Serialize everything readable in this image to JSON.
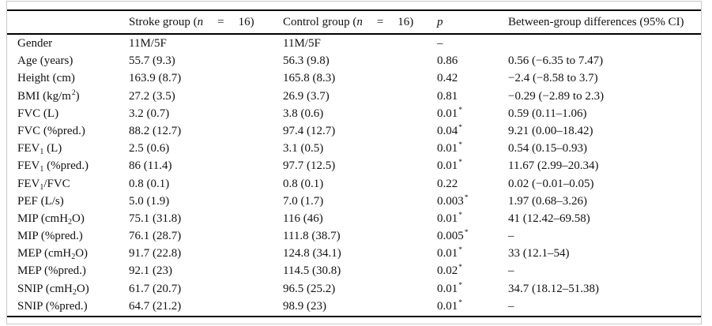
{
  "table": {
    "headers": [
      "",
      "Stroke group (*n*  =  16)",
      "Control group (*n*  =  16)",
      "*p*",
      "Between-group differences (95% CI)"
    ],
    "rows": [
      [
        "Gender",
        "11M/5F",
        "11M/5F",
        "–",
        ""
      ],
      [
        "Age (years)",
        "55.7 (9.3)",
        "56.3 (9.8)",
        "0.86",
        "0.56 (−6.35 to 7.47)"
      ],
      [
        "Height (cm)",
        "163.9 (8.7)",
        "165.8 (8.3)",
        "0.42",
        "−2.4 (−8.58 to 3.7)"
      ],
      [
        "BMI (kg/m^2^)",
        "27.2 (3.5)",
        "26.9 (3.7)",
        "0.81",
        "−0.29 (−2.89 to 2.3)"
      ],
      [
        "FVC (L)",
        "3.2 (0.7)",
        "3.8 (0.6)",
        "0.01^*^",
        "0.59 (0.11–1.06)"
      ],
      [
        "FVC (%pred.)",
        "88.2 (12.7)",
        "97.4 (12.7)",
        "0.04^*^",
        "9.21 (0.00–18.42)"
      ],
      [
        "FEV~1~ (L)",
        "2.5 (0.6)",
        "3.1 (0.5)",
        "0.01^*^",
        "0.54 (0.15–0.93)"
      ],
      [
        "FEV~1~ (%pred.)",
        "86 (11.4)",
        "97.7 (12.5)",
        "0.01^*^",
        "11.67 (2.99–20.34)"
      ],
      [
        "FEV~1~/FVC",
        "0.8 (0.1)",
        "0.8 (0.1)",
        "0.22",
        "0.02 (−0.01–0.05)"
      ],
      [
        "PEF (L/s)",
        "5.0 (1.9)",
        "7.0 (1.7)",
        "0.003^*^",
        "1.97 (0.68–3.26)"
      ],
      [
        "MIP (cmH~2~O)",
        "75.1 (31.8)",
        "116 (46)",
        "0.01^*^",
        "41 (12.42–69.58)"
      ],
      [
        "MIP (%pred.)",
        "76.1 (28.7)",
        "111.8 (38.7)",
        "0.005^*^",
        "–"
      ],
      [
        "MEP (cmH~2~O)",
        "91.7 (22.8)",
        "124.8 (34.1)",
        "0.01^*^",
        "33 (12.1–54)"
      ],
      [
        "MEP (%pred.)",
        "92.1 (23)",
        "114.5 (30.8)",
        "0.02^*^",
        "–"
      ],
      [
        "SNIP (cmH~2~O)",
        "61.7 (20.7)",
        "96.5 (25.2)",
        "0.01^*^",
        "34.7 (18.12–51.38)"
      ],
      [
        "SNIP (%pred.)",
        "64.7 (21.2)",
        "98.9 (23)",
        "0.01^*^",
        "–"
      ]
    ]
  },
  "colors": {
    "rule": "#000000",
    "frame_border": "#c9c9c9",
    "text": "#121212",
    "background": "#ffffff"
  }
}
